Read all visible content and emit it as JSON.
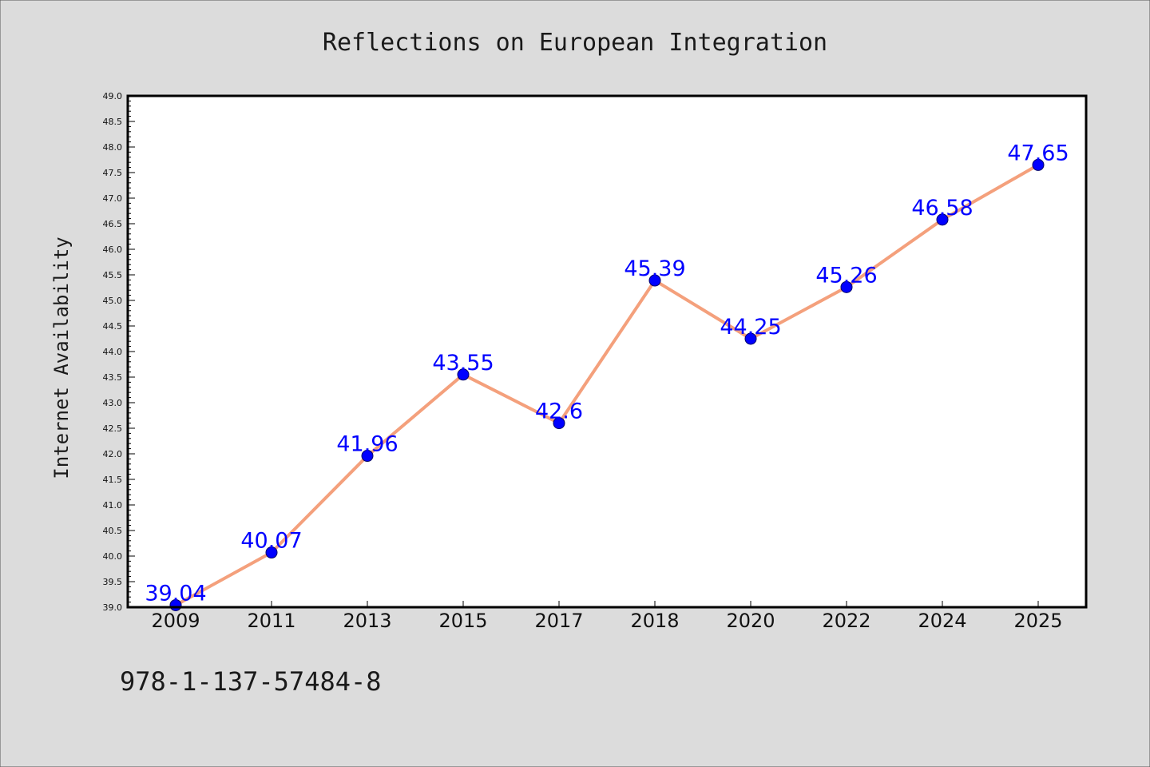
{
  "chart_data": {
    "type": "line",
    "title": "Reflections on European Integration",
    "xlabel": "",
    "ylabel": "Internet Availability",
    "categories": [
      "2009",
      "2011",
      "2013",
      "2015",
      "2017",
      "2018",
      "2020",
      "2022",
      "2024",
      "2025"
    ],
    "series": [
      {
        "values": [
          39.04,
          40.07,
          41.96,
          43.55,
          42.6,
          45.39,
          44.25,
          45.26,
          46.58,
          47.65
        ],
        "labels": [
          "39.04",
          "40.07",
          "41.96",
          "43.55",
          "42.6",
          "45.39",
          "44.25",
          "45.26",
          "46.58",
          "47.65"
        ],
        "line_color": "#f4a07c",
        "marker_color": "#0000ff",
        "label_color": "#0000ff"
      }
    ],
    "ylim": [
      39.0,
      49.0
    ],
    "yticks": [
      "39.0",
      "39.5",
      "40.0",
      "40.5",
      "41.0",
      "41.5",
      "42.0",
      "42.5",
      "43.0",
      "43.5",
      "44.0",
      "44.5",
      "45.0",
      "45.5",
      "46.0",
      "46.5",
      "47.0",
      "47.5",
      "48.0",
      "48.5",
      "49.0"
    ],
    "grid": false,
    "legend": "none"
  },
  "footer": {
    "isbn": "978-1-137-57484-8"
  },
  "colors": {
    "background": "#dcdcdc",
    "plot_background": "#ffffff",
    "axis": "#000000"
  }
}
